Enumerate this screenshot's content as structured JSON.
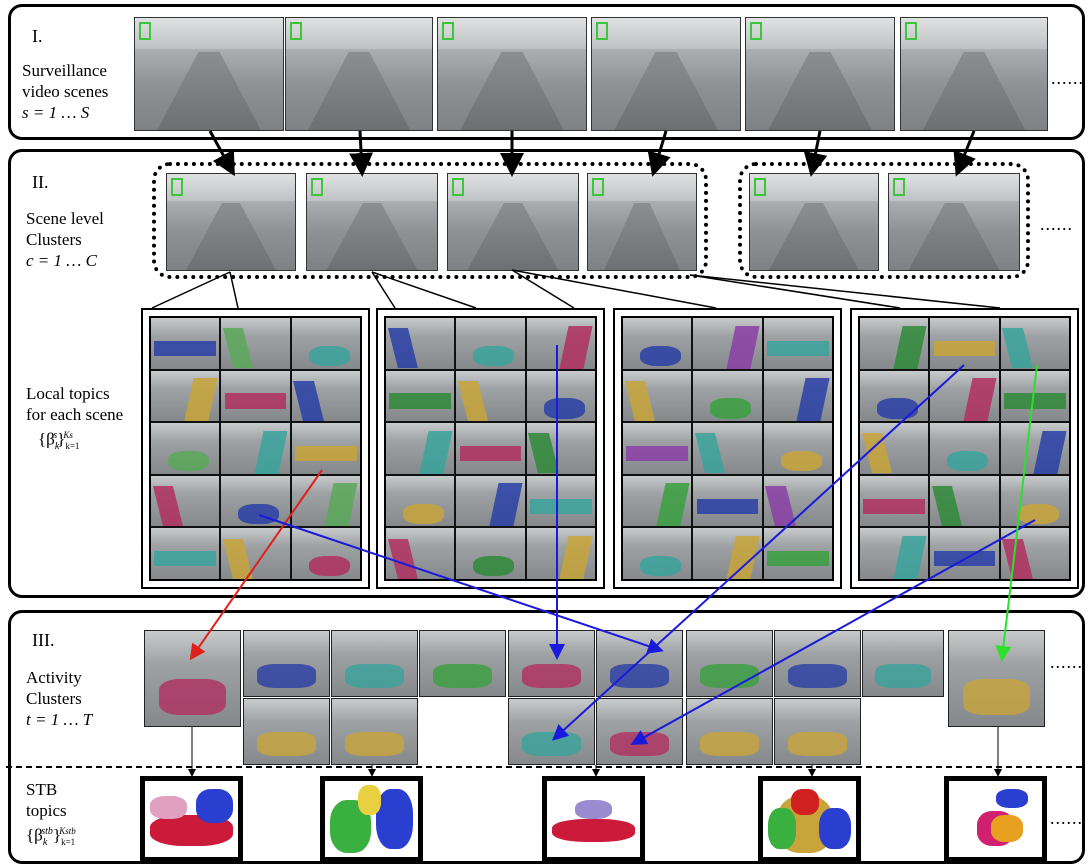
{
  "section1": {
    "roman": "I.",
    "label_line1": "Surveillance",
    "label_line2": "video scenes",
    "label_line3": "s = 1 … S",
    "ellipsis": "......"
  },
  "section2": {
    "roman": "II.",
    "label_line1": "Scene level",
    "label_line2": "Clusters",
    "label_line3": "c = 1 … C",
    "ellipsis": "......",
    "topics_line1": "Local topics",
    "topics_line2": "for each scene",
    "topics_formula": "{β",
    "topics_formula_sub": "k",
    "topics_formula_sup": "s",
    "topics_formula_tail": "}",
    "topics_formula_range_sub": "k=1",
    "topics_formula_range_sup": "Ks"
  },
  "section3": {
    "roman": "III.",
    "label_line1": "Activity",
    "label_line2": "Clusters",
    "label_line3": "t = 1 … T",
    "ellipsis": "......",
    "stb_line1": "STB",
    "stb_line2": "topics",
    "stb_formula": "{β",
    "stb_formula_sub": "k",
    "stb_formula_sup": "stb",
    "stb_formula_tail": "}",
    "stb_formula_range_sub": "k=1",
    "stb_formula_range_sup": "Kstb",
    "stb_ellipsis": "......"
  },
  "colors": {
    "arrow_red": "#e0201a",
    "arrow_blue": "#1a1adc",
    "arrow_green": "#2ee02e",
    "logo_green": "#3cc63c"
  }
}
